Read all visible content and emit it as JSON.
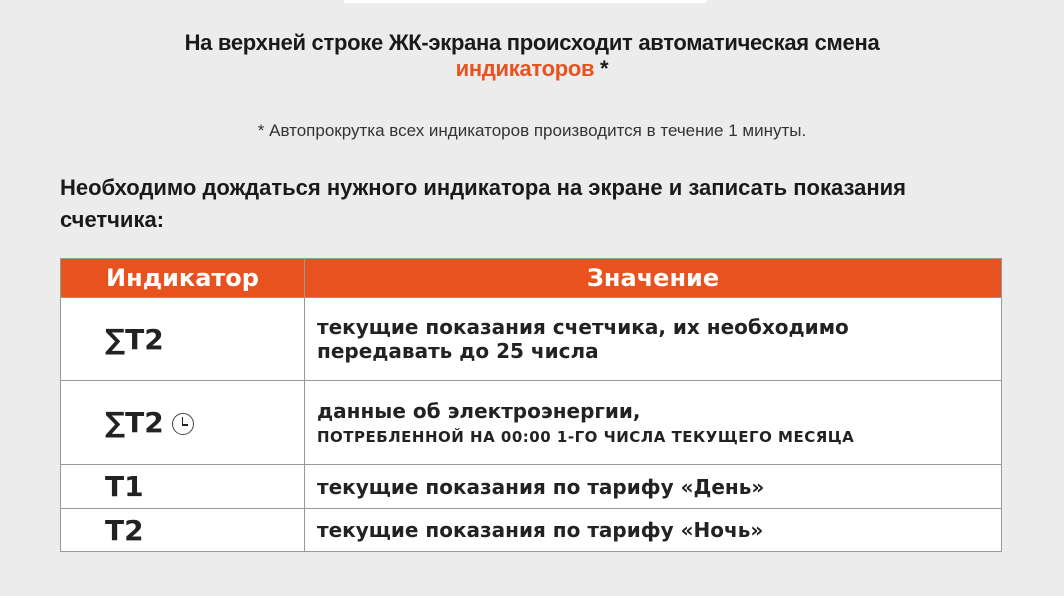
{
  "heading": {
    "line1": "На верхней строке ЖК-экрана происходит автоматическая смена",
    "highlight": "индикаторов",
    "asterisk": " *"
  },
  "footnote": "* Автопрокрутка всех индикаторов производится в течение 1 минуты.",
  "lead": "Необходимо дождаться нужного индикатора на экране и записать показания счетчика:",
  "table": {
    "headers": [
      "Индикатор",
      "Значение"
    ],
    "rows": [
      {
        "indicator": "∑T2",
        "value": "текущие показания счетчика, их необходимо передавать до 25 числа"
      },
      {
        "indicator": "∑T2",
        "icon": "clock-icon",
        "value": "данные об электроэнергии,",
        "value2": "ПОТРЕБЛЕННОЙ НА 00:00 1-ГО ЧИСЛА ТЕКУЩЕГО МЕСЯЦА"
      },
      {
        "indicator": "T1",
        "value": "текущие показания по тарифу «День»"
      },
      {
        "indicator": "T2",
        "value": "текущие показания по тарифу «Ночь»"
      }
    ]
  },
  "colors": {
    "accent": "#e8521f",
    "background": "#ececec"
  }
}
